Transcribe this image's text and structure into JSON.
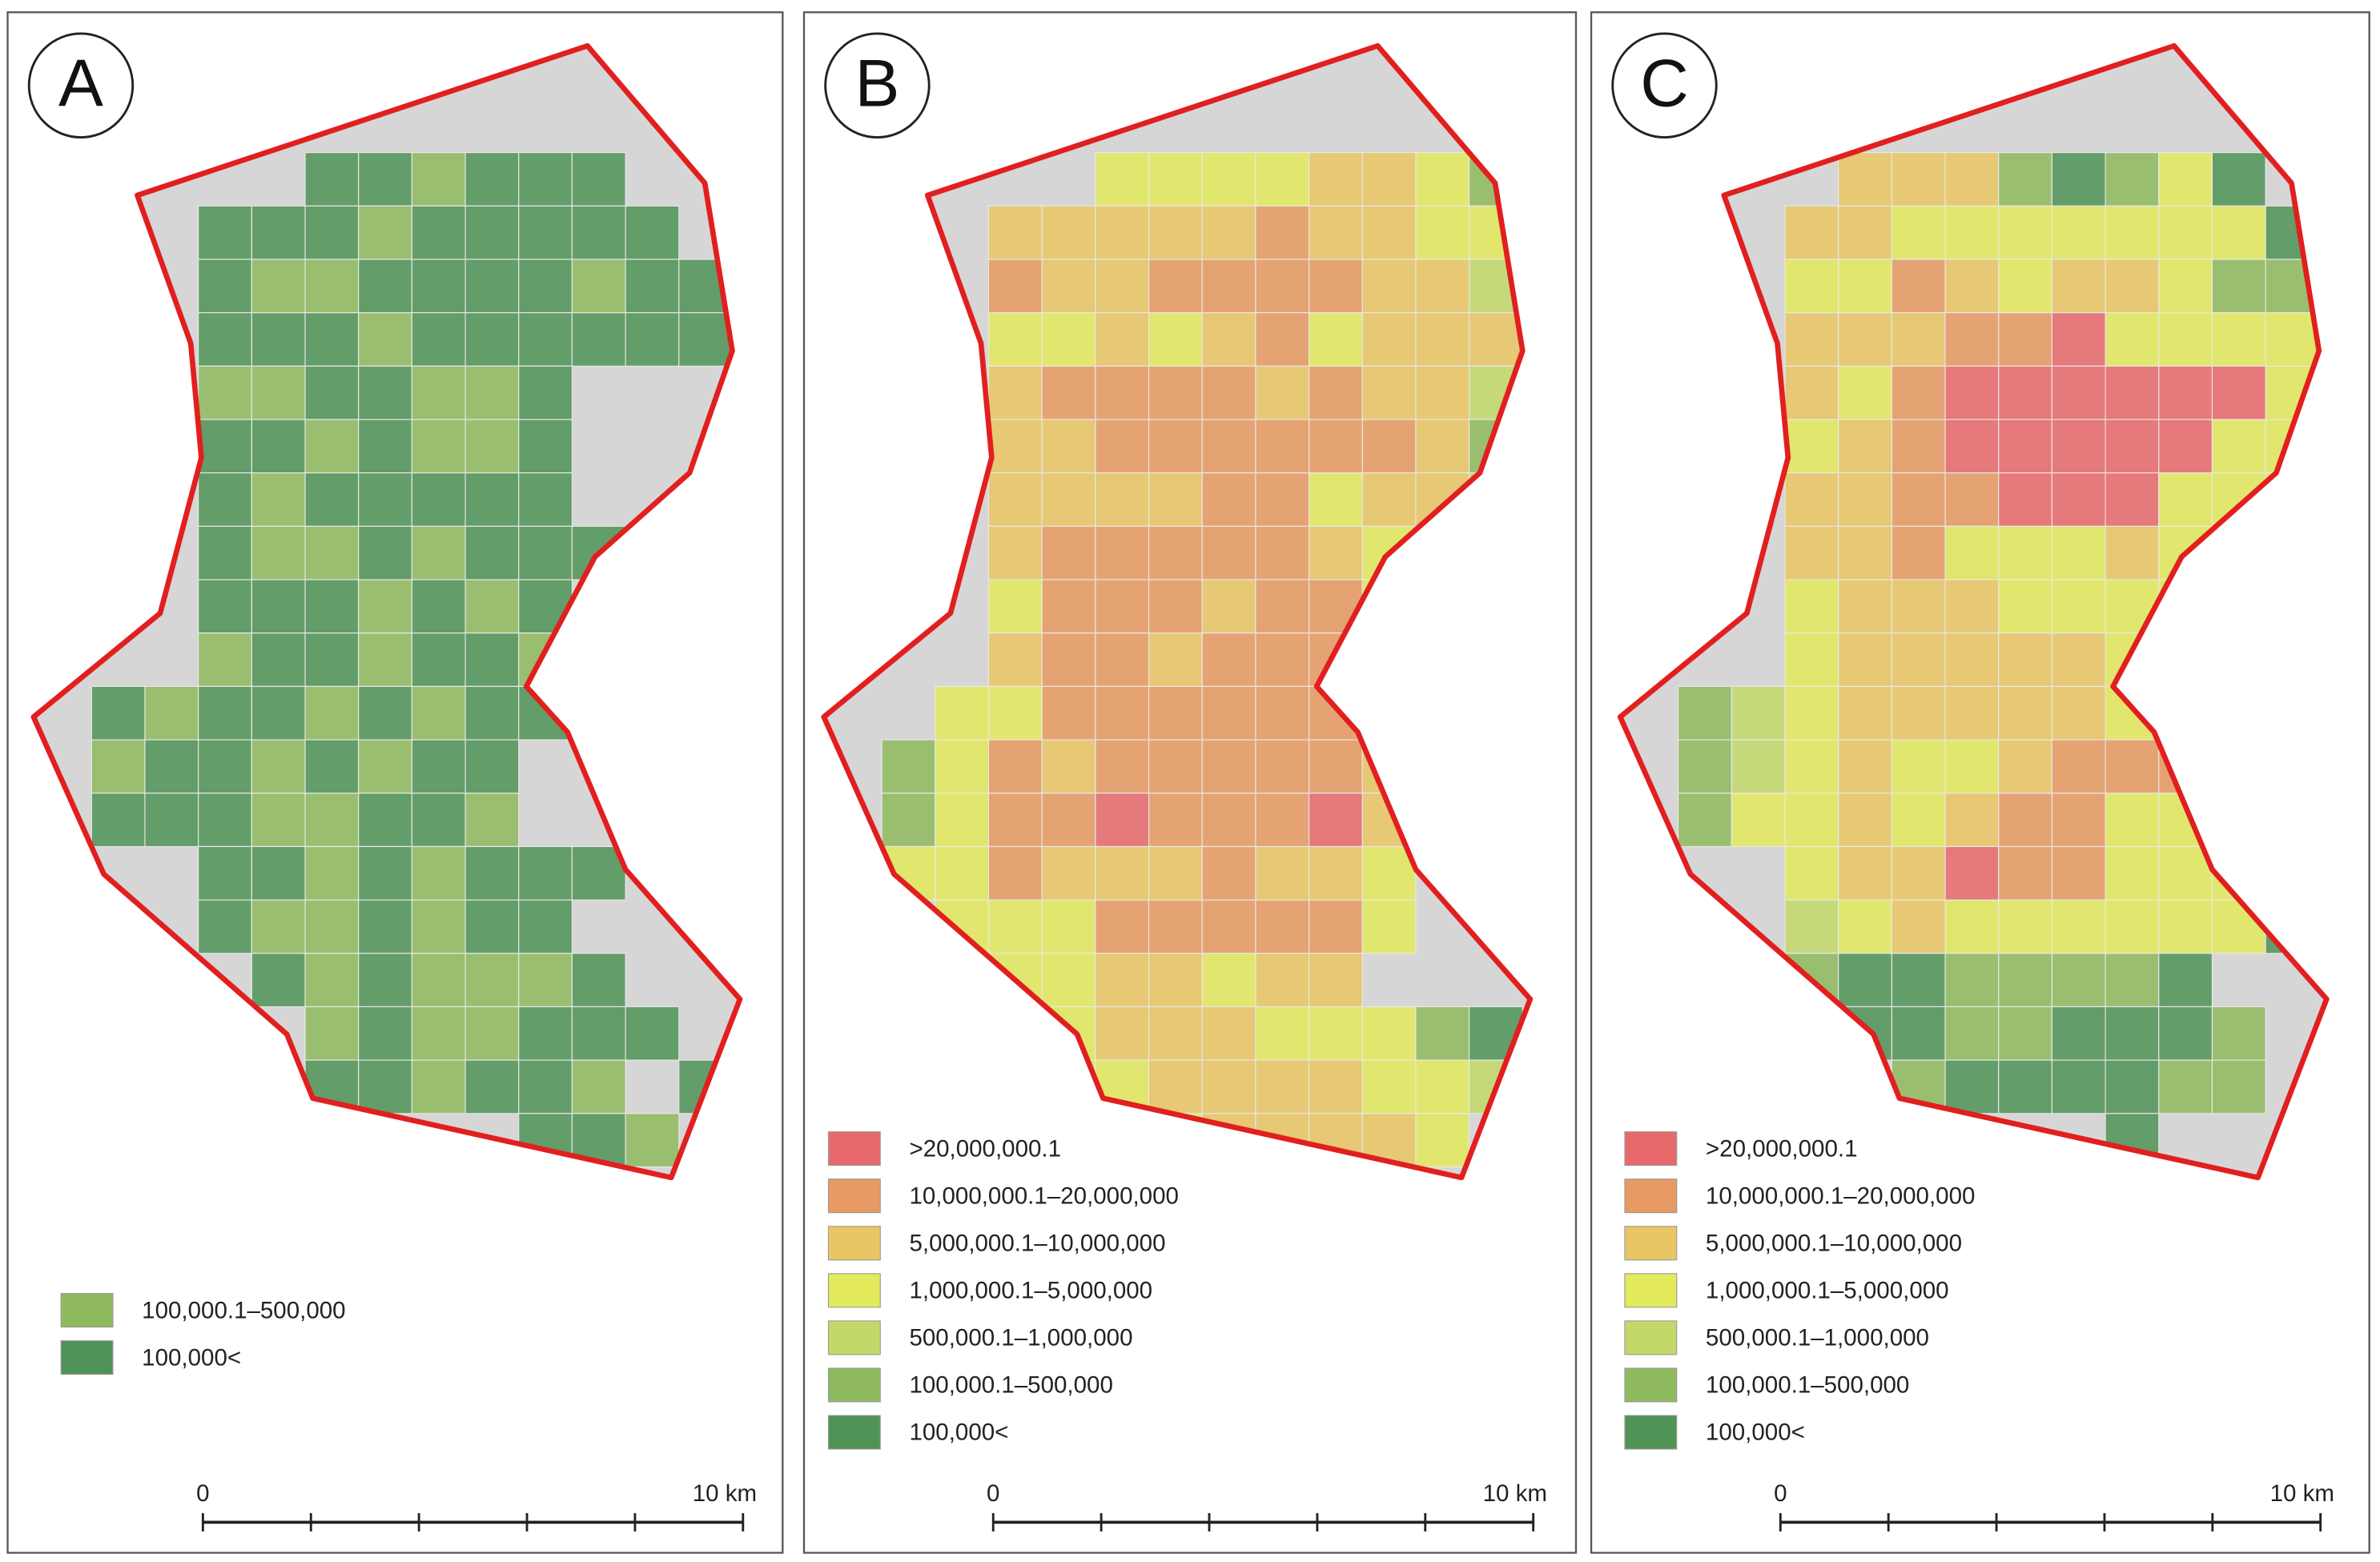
{
  "panels": [
    {
      "label": "A",
      "legend": [
        {
          "label": "100,000.1–500,000",
          "color": "#8fba5e"
        },
        {
          "label": "100,000<",
          "color": "#4f9356"
        }
      ],
      "scale_bar": {
        "start": "0",
        "end": "10 km"
      }
    },
    {
      "label": "B",
      "legend": [
        {
          "label": ">20,000,000.1",
          "color": "#e8696b"
        },
        {
          "label": "10,000,000.1–20,000,000",
          "color": "#e79a63"
        },
        {
          "label": "5,000,000.1–10,000,000",
          "color": "#e9c664"
        },
        {
          "label": "1,000,000.1–5,000,000",
          "color": "#e3ea5c"
        },
        {
          "label": "500,000.1–1,000,000",
          "color": "#c2d96a"
        },
        {
          "label": "100,000.1–500,000",
          "color": "#8fba5e"
        },
        {
          "label": "100,000<",
          "color": "#4f9356"
        }
      ],
      "scale_bar": {
        "start": "0",
        "end": "10 km"
      }
    },
    {
      "label": "C",
      "legend": [
        {
          "label": ">20,000,000.1",
          "color": "#e8696b"
        },
        {
          "label": "10,000,000.1–20,000,000",
          "color": "#e79a63"
        },
        {
          "label": "5,000,000.1–10,000,000",
          "color": "#e9c664"
        },
        {
          "label": "1,000,000.1–5,000,000",
          "color": "#e3ea5c"
        },
        {
          "label": "500,000.1–1,000,000",
          "color": "#c2d96a"
        },
        {
          "label": "100,000.1–500,000",
          "color": "#8fba5e"
        },
        {
          "label": "100,000<",
          "color": "#4f9356"
        }
      ],
      "scale_bar": {
        "start": "0",
        "end": "10 km"
      }
    }
  ]
}
